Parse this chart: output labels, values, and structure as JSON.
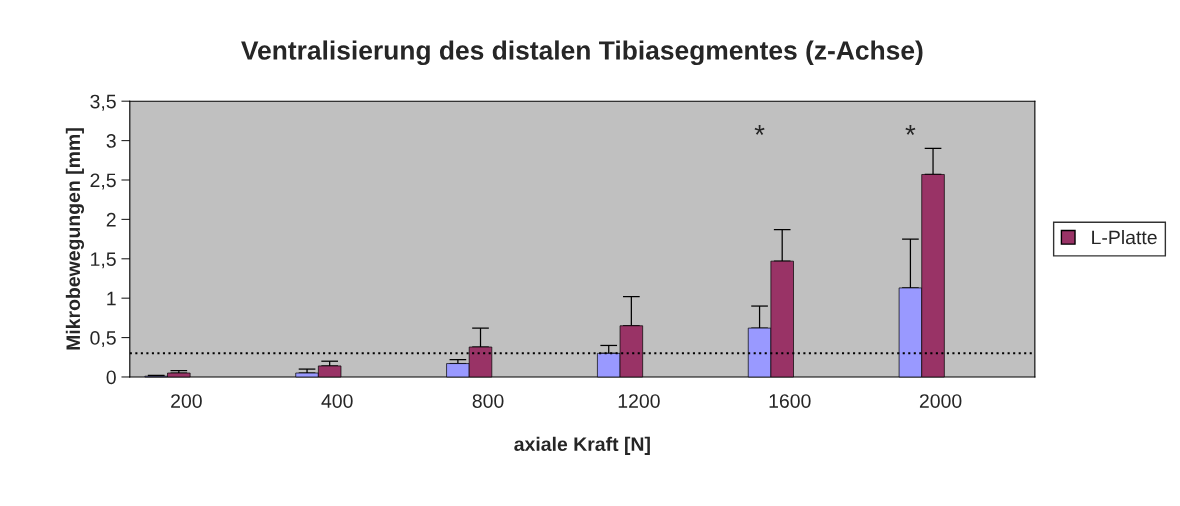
{
  "chart_data": {
    "type": "bar",
    "title": "Ventralisierung des distalen Tibiasegmentes (z-Achse)",
    "xlabel": "axiale Kraft [N]",
    "ylabel": "Mikrobewegungen [mm]",
    "categories": [
      "200",
      null,
      "400",
      null,
      "800",
      null,
      "1200",
      null,
      "1600",
      null,
      "2000",
      null
    ],
    "series": [
      {
        "color": "#9999ff",
        "values": [
          0.01,
          null,
          0.05,
          null,
          0.17,
          null,
          0.3,
          null,
          0.62,
          null,
          1.13,
          null
        ],
        "errors": [
          [
            0.01,
            0.02
          ],
          null,
          [
            0.05,
            0.1
          ],
          null,
          [
            0.17,
            0.22
          ],
          null,
          [
            0.3,
            0.4
          ],
          null,
          [
            0.62,
            0.9
          ],
          null,
          [
            1.13,
            1.75
          ],
          null
        ]
      },
      {
        "name": "L-Platte",
        "color": "#993366",
        "values": [
          0.05,
          null,
          0.14,
          null,
          0.38,
          null,
          0.65,
          null,
          1.47,
          null,
          2.57,
          null
        ],
        "errors": [
          [
            0.05,
            0.08
          ],
          null,
          [
            0.14,
            0.2
          ],
          null,
          [
            0.38,
            0.62
          ],
          null,
          [
            0.65,
            1.02
          ],
          null,
          [
            1.47,
            1.87
          ],
          null,
          [
            2.57,
            2.9
          ],
          null
        ]
      }
    ],
    "ylim": [
      0,
      3.5
    ],
    "yticks": [
      {
        "value": 0,
        "label": "0"
      },
      {
        "value": 0.5,
        "label": "0,5"
      },
      {
        "value": 1,
        "label": "1"
      },
      {
        "value": 1.5,
        "label": "1,5"
      },
      {
        "value": 2,
        "label": "2"
      },
      {
        "value": 2.5,
        "label": "2,5"
      },
      {
        "value": 3,
        "label": "3"
      },
      {
        "value": 3.5,
        "label": "3,5"
      }
    ],
    "ref_lines": [
      {
        "axis": "y",
        "value": 0.3,
        "color": "#000000",
        "line_style": "dotted"
      }
    ],
    "annotations": [
      "*",
      "*"
    ],
    "grid": false,
    "legend": "right"
  }
}
